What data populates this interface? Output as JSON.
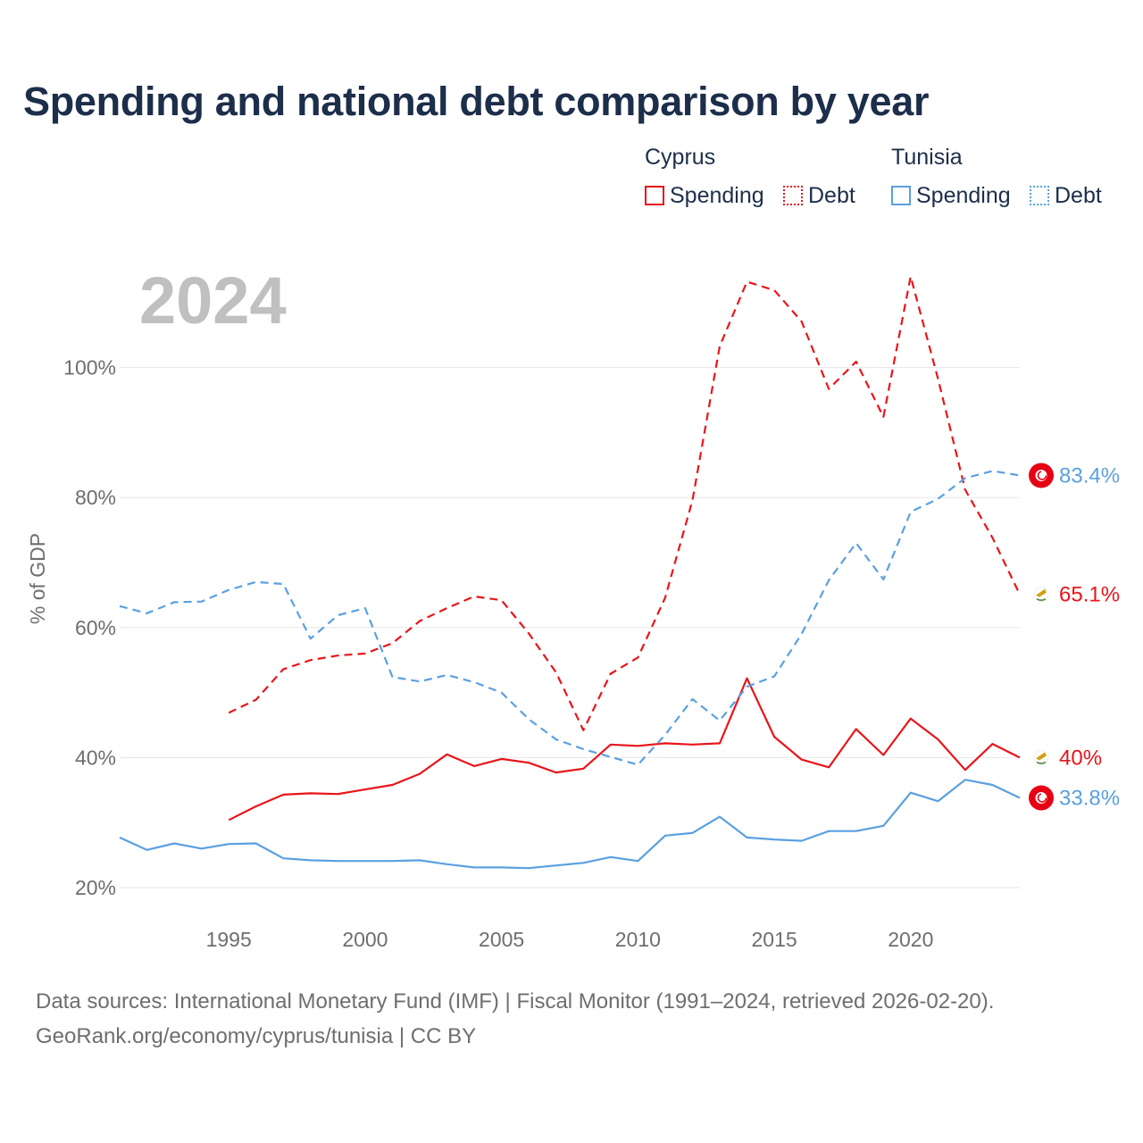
{
  "title": "Spending and national debt comparison by year",
  "legend": {
    "groups": [
      {
        "name": "Cyprus",
        "color": "#e8151a",
        "items": [
          "Spending",
          "Debt"
        ]
      },
      {
        "name": "Tunisia",
        "color": "#5aa0e0",
        "items": [
          "Spending",
          "Debt"
        ]
      }
    ]
  },
  "year_watermark": "2024",
  "footer": {
    "line1": "Data sources: International Monetary Fund (IMF) | Fiscal Monitor (1991–2024, retrieved 2026-02-20).",
    "line2": "GeoRank.org/economy/cyprus/tunisia | CC BY"
  },
  "chart_data": {
    "type": "line",
    "title": "Spending and national debt comparison by year",
    "xlabel": "",
    "ylabel": "% of GDP",
    "xlim": [
      1991,
      2024
    ],
    "ylim": [
      20,
      115
    ],
    "x_ticks": [
      1995,
      2000,
      2005,
      2010,
      2015,
      2020
    ],
    "y_ticks": [
      20,
      40,
      60,
      80,
      100
    ],
    "y_tick_labels": [
      "20%",
      "40%",
      "60%",
      "80%",
      "100%"
    ],
    "grid": true,
    "series": [
      {
        "name": "Cyprus Spending",
        "country": "Cyprus",
        "measure": "Spending",
        "color": "#e8151a",
        "dashed": false,
        "end_label": "40%",
        "flag": "cyprus",
        "x": [
          1995,
          1996,
          1997,
          1998,
          1999,
          2000,
          2001,
          2002,
          2003,
          2004,
          2005,
          2006,
          2007,
          2008,
          2009,
          2010,
          2011,
          2012,
          2013,
          2014,
          2015,
          2016,
          2017,
          2018,
          2019,
          2020,
          2021,
          2022,
          2023,
          2024
        ],
        "values": [
          30.4,
          32.5,
          34.3,
          34.5,
          34.4,
          35.1,
          35.8,
          37.5,
          40.5,
          38.7,
          39.8,
          39.2,
          37.7,
          38.3,
          42.0,
          41.8,
          42.2,
          42.0,
          42.2,
          52.2,
          43.2,
          39.7,
          38.5,
          44.4,
          40.4,
          46.0,
          42.8,
          38.1,
          42.1,
          40.0
        ]
      },
      {
        "name": "Cyprus Debt",
        "country": "Cyprus",
        "measure": "Debt",
        "color": "#e8151a",
        "dashed": true,
        "end_label": "65.1%",
        "flag": "cyprus",
        "x": [
          1995,
          1996,
          1997,
          1998,
          1999,
          2000,
          2001,
          2002,
          2003,
          2004,
          2005,
          2006,
          2007,
          2008,
          2009,
          2010,
          2011,
          2012,
          2013,
          2014,
          2015,
          2016,
          2017,
          2018,
          2019,
          2020,
          2021,
          2022,
          2023,
          2024
        ],
        "values": [
          46.9,
          48.9,
          53.6,
          55.0,
          55.7,
          56.0,
          57.6,
          61.0,
          63.0,
          64.8,
          64.2,
          59.1,
          53.1,
          44.2,
          52.9,
          55.4,
          64.6,
          79.6,
          103.3,
          113.2,
          111.9,
          107.1,
          96.7,
          100.9,
          92.4,
          114.0,
          98.3,
          81.2,
          73.8,
          65.1
        ]
      },
      {
        "name": "Tunisia Spending",
        "country": "Tunisia",
        "measure": "Spending",
        "color": "#5aa0e0",
        "dashed": false,
        "end_label": "33.8%",
        "flag": "tunisia",
        "x": [
          1991,
          1992,
          1993,
          1994,
          1995,
          1996,
          1997,
          1998,
          1999,
          2000,
          2001,
          2002,
          2003,
          2004,
          2005,
          2006,
          2007,
          2008,
          2009,
          2010,
          2011,
          2012,
          2013,
          2014,
          2015,
          2016,
          2017,
          2018,
          2019,
          2020,
          2021,
          2022,
          2023,
          2024
        ],
        "values": [
          27.7,
          25.8,
          26.8,
          26.0,
          26.7,
          26.8,
          24.5,
          24.2,
          24.1,
          24.1,
          24.1,
          24.2,
          23.6,
          23.1,
          23.1,
          23.0,
          23.4,
          23.8,
          24.7,
          24.1,
          28.0,
          28.4,
          30.9,
          27.7,
          27.4,
          27.2,
          28.7,
          28.7,
          29.5,
          34.6,
          33.3,
          36.6,
          35.8,
          33.8
        ]
      },
      {
        "name": "Tunisia Debt",
        "country": "Tunisia",
        "measure": "Debt",
        "color": "#5aa0e0",
        "dashed": true,
        "end_label": "83.4%",
        "flag": "tunisia",
        "x": [
          1991,
          1992,
          1993,
          1994,
          1995,
          1996,
          1997,
          1998,
          1999,
          2000,
          2001,
          2002,
          2003,
          2004,
          2005,
          2006,
          2007,
          2008,
          2009,
          2010,
          2011,
          2012,
          2013,
          2014,
          2015,
          2016,
          2017,
          2018,
          2019,
          2020,
          2021,
          2022,
          2023,
          2024
        ],
        "values": [
          63.3,
          62.2,
          63.9,
          64.0,
          65.8,
          67.0,
          66.7,
          58.3,
          61.9,
          63.0,
          52.4,
          51.7,
          52.7,
          51.6,
          50.0,
          45.9,
          42.8,
          41.3,
          40.1,
          38.9,
          43.5,
          49.0,
          45.7,
          50.9,
          52.5,
          59.0,
          67.3,
          73.0,
          67.4,
          77.8,
          79.8,
          83.0,
          84.1,
          83.4
        ]
      }
    ]
  }
}
